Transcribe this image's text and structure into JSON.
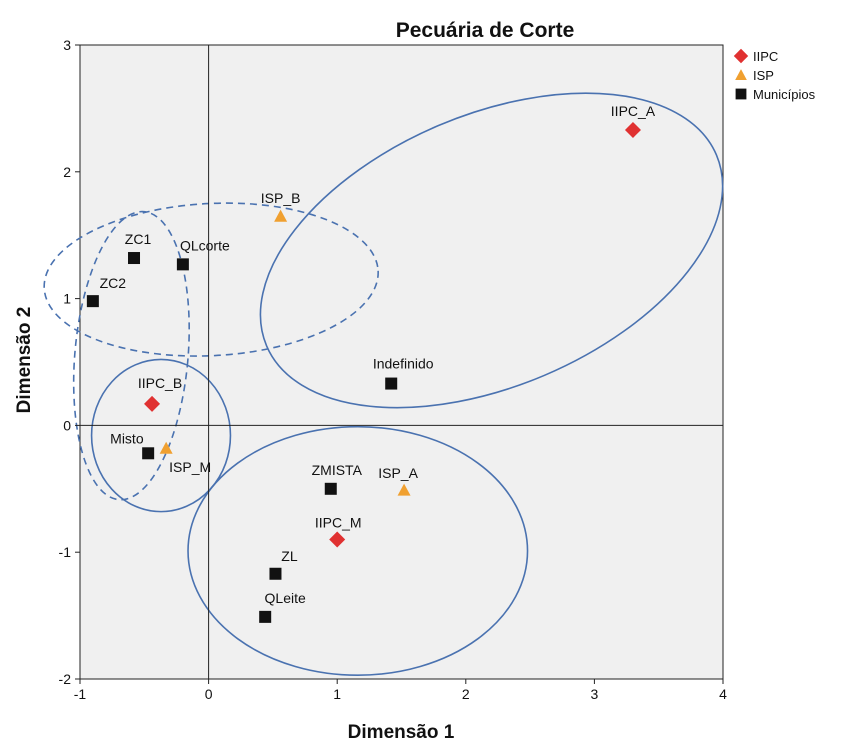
{
  "chart_data": {
    "type": "scatter",
    "title": "Pecuária de Corte",
    "xlabel": "Dimensão 1",
    "ylabel": "Dimensão 2",
    "xlim": [
      -1,
      4
    ],
    "ylim": [
      -2,
      3
    ],
    "x_ticks": [
      "-1",
      "0",
      "1",
      "2",
      "3",
      "4"
    ],
    "y_ticks": [
      "-2",
      "-1",
      "0",
      "1",
      "2",
      "3"
    ],
    "background": "#f0f0f0",
    "grid": false,
    "reference_lines": {
      "x": 0,
      "y": 0
    },
    "legend_position": "right-top",
    "series": [
      {
        "name": "IIPC",
        "marker": "diamond",
        "color": "#e03131",
        "points": [
          {
            "label": "IIPC_A",
            "x": 3.3,
            "y": 2.33
          },
          {
            "label": "IIPC_B",
            "x": -0.44,
            "y": 0.17
          },
          {
            "label": "IIPC_M",
            "x": 1.0,
            "y": -0.9
          }
        ]
      },
      {
        "name": "ISP",
        "marker": "triangle",
        "color": "#f0a030",
        "points": [
          {
            "label": "ISP_B",
            "x": 0.56,
            "y": 1.65
          },
          {
            "label": "ISP_M",
            "x": -0.33,
            "y": -0.18
          },
          {
            "label": "ISP_A",
            "x": 1.52,
            "y": -0.51
          }
        ]
      },
      {
        "name": "Municípios",
        "marker": "square",
        "color": "#111111",
        "points": [
          {
            "label": "ZC1",
            "x": -0.58,
            "y": 1.32
          },
          {
            "label": "QLcorte",
            "x": -0.2,
            "y": 1.27
          },
          {
            "label": "ZC2",
            "x": -0.9,
            "y": 0.98
          },
          {
            "label": "Indefinido",
            "x": 1.42,
            "y": 0.33
          },
          {
            "label": "Misto",
            "x": -0.47,
            "y": -0.22
          },
          {
            "label": "ZMISTA",
            "x": 0.95,
            "y": -0.5
          },
          {
            "label": "ZL",
            "x": 0.52,
            "y": -1.17
          },
          {
            "label": "QLeite",
            "x": 0.44,
            "y": -1.51
          }
        ]
      }
    ],
    "groupings": [
      {
        "shape": "ellipse",
        "style": "solid",
        "color": "#4a72b0",
        "cx": 2.2,
        "cy": 1.38,
        "rx": 1.9,
        "ry": 1.07,
        "rotation_deg": -23
      },
      {
        "shape": "ellipse",
        "style": "solid",
        "color": "#4a72b0",
        "cx": 1.16,
        "cy": -0.99,
        "rx": 1.32,
        "ry": 0.98,
        "rotation_deg": 0
      },
      {
        "shape": "ellipse",
        "style": "solid",
        "color": "#4a72b0",
        "cx": -0.37,
        "cy": -0.08,
        "rx": 0.54,
        "ry": 0.6,
        "rotation_deg": 0
      },
      {
        "shape": "ellipse",
        "style": "dashed",
        "color": "#4a72b0",
        "cx": 0.02,
        "cy": 1.15,
        "rx": 1.3,
        "ry": 0.6,
        "rotation_deg": -3
      },
      {
        "shape": "ellipse",
        "style": "dashed",
        "color": "#4a72b0",
        "cx": -0.6,
        "cy": 0.55,
        "rx": 0.44,
        "ry": 1.14,
        "rotation_deg": 5
      }
    ]
  }
}
